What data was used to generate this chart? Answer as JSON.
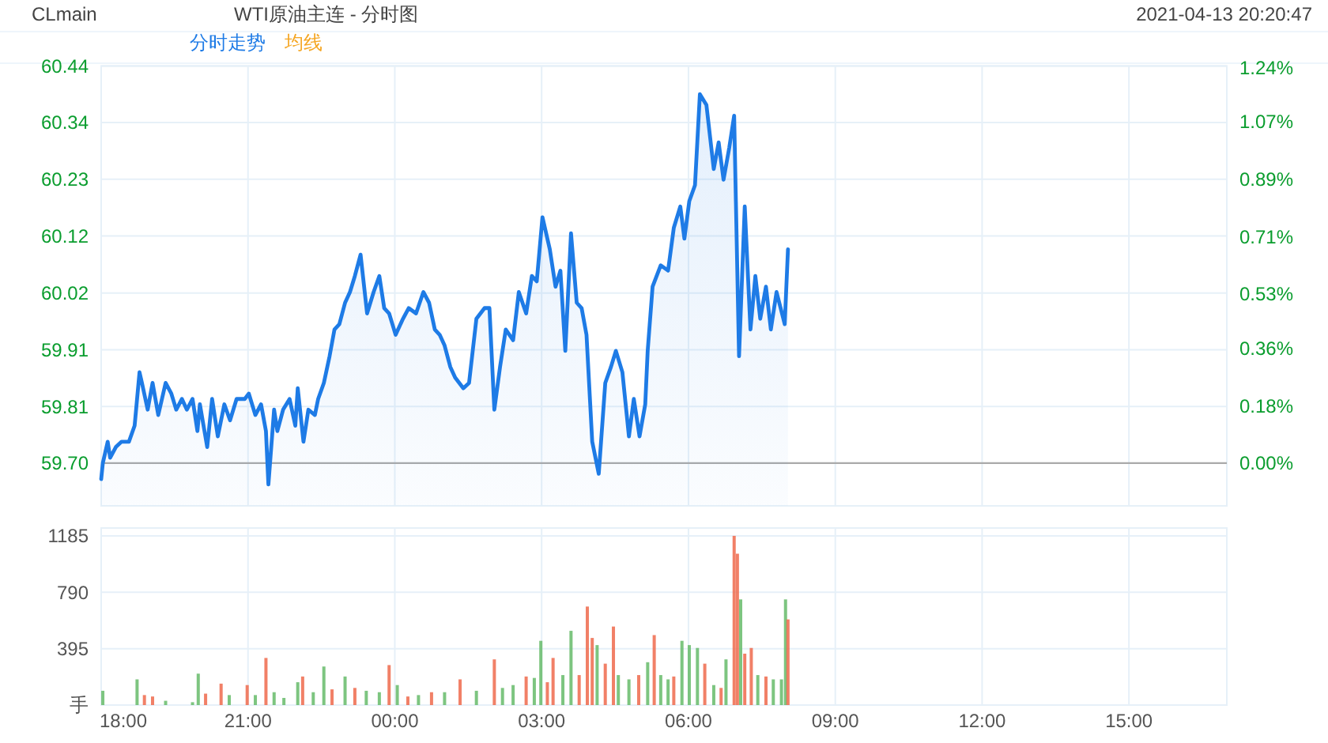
{
  "chart_data": [
    {
      "type": "area",
      "title": "WTI原油主连 - 分时图",
      "annotations": [
        "CLmain",
        "2021-04-13 20:20:47",
        "均线"
      ],
      "legend": "top left",
      "grid": true,
      "tick_labels": "y",
      "xlim": [
        "2021-04-12T18:00",
        "2021-04-13T17:00"
      ],
      "xticks": [
        {
          "value": "2021-04-12T18:00",
          "label": null
        },
        {
          "value": "2021-04-12T21:00",
          "label": null
        },
        {
          "value": "2021-04-13T00:00",
          "label": null
        },
        {
          "value": "2021-04-13T03:00",
          "label": null
        },
        {
          "value": "2021-04-13T06:00",
          "label": null
        },
        {
          "value": "2021-04-13T09:00",
          "label": null
        },
        {
          "value": "2021-04-13T12:00",
          "label": null
        },
        {
          "value": "2021-04-13T15:00",
          "label": null
        }
      ],
      "ylim": [
        59.62,
        60.443
      ],
      "yticks": [
        {
          "value": 59.7,
          "label": "59.70"
        },
        {
          "value": 59.806,
          "label": "59.81"
        },
        {
          "value": 59.912,
          "label": "59.91"
        },
        {
          "value": 60.018,
          "label": "60.02"
        },
        {
          "value": 60.125,
          "label": "60.12"
        },
        {
          "value": 60.231,
          "label": "60.23"
        },
        {
          "value": 60.337,
          "label": "60.34"
        },
        {
          "value": 60.443,
          "label": "60.44"
        }
      ],
      "y2lim": [
        -0.134,
        1.245
      ],
      "y2ticks": [
        {
          "value": 0,
          "label": "0.00%"
        },
        {
          "value": 0.18,
          "label": "0.18%"
        },
        {
          "value": 0.36,
          "label": "0.36%"
        },
        {
          "value": 0.53,
          "label": "0.53%"
        },
        {
          "value": 0.71,
          "label": "0.71%"
        },
        {
          "value": 0.89,
          "label": "0.89%"
        },
        {
          "value": 1.07,
          "label": "1.07%"
        },
        {
          "value": 1.24,
          "label": "1.24%"
        }
      ],
      "ref_lines": [
        {
          "axis": "y",
          "value": 59.7,
          "color": "#aaaaaa"
        }
      ],
      "series": [
        {
          "name": "分时走势",
          "color": "#1e7be6",
          "x": [
            "2021-04-12T18:00",
            "2021-04-12T18:02",
            "2021-04-12T18:08",
            "2021-04-12T18:11",
            "2021-04-12T18:18",
            "2021-04-12T18:25",
            "2021-04-12T18:34",
            "2021-04-12T18:41",
            "2021-04-12T18:47",
            "2021-04-12T18:50",
            "2021-04-12T18:57",
            "2021-04-12T19:03",
            "2021-04-12T19:10",
            "2021-04-12T19:19",
            "2021-04-12T19:26",
            "2021-04-12T19:32",
            "2021-04-12T19:39",
            "2021-04-12T19:45",
            "2021-04-12T19:52",
            "2021-04-12T19:58",
            "2021-04-12T20:01",
            "2021-04-12T20:10",
            "2021-04-12T20:16",
            "2021-04-12T20:23",
            "2021-04-12T20:31",
            "2021-04-12T20:38",
            "2021-04-12T20:46",
            "2021-04-12T20:56",
            "2021-04-12T21:01",
            "2021-04-12T21:09",
            "2021-04-12T21:16",
            "2021-04-12T21:22",
            "2021-04-12T21:25",
            "2021-04-12T21:32",
            "2021-04-12T21:36",
            "2021-04-12T21:43",
            "2021-04-12T21:51",
            "2021-04-12T21:58",
            "2021-04-12T22:01",
            "2021-04-12T22:08",
            "2021-04-12T22:14",
            "2021-04-12T22:22",
            "2021-04-12T22:26",
            "2021-04-12T22:33",
            "2021-04-12T22:40",
            "2021-04-12T22:46",
            "2021-04-12T22:52",
            "2021-04-12T22:59",
            "2021-04-12T23:05",
            "2021-04-12T23:11",
            "2021-04-12T23:18",
            "2021-04-12T23:26",
            "2021-04-12T23:34",
            "2021-04-12T23:41",
            "2021-04-12T23:47",
            "2021-04-12T23:53",
            "2021-04-13T00:01",
            "2021-04-13T00:10",
            "2021-04-13T00:17",
            "2021-04-13T00:26",
            "2021-04-13T00:35",
            "2021-04-13T00:42",
            "2021-04-13T00:49",
            "2021-04-13T00:55",
            "2021-04-13T01:01",
            "2021-04-13T01:08",
            "2021-04-13T01:14",
            "2021-04-13T01:24",
            "2021-04-13T01:31",
            "2021-04-13T01:40",
            "2021-04-13T01:50",
            "2021-04-13T01:56",
            "2021-04-13T02:02",
            "2021-04-13T02:09",
            "2021-04-13T02:16",
            "2021-04-13T02:25",
            "2021-04-13T02:32",
            "2021-04-13T02:41",
            "2021-04-13T02:48",
            "2021-04-13T02:54",
            "2021-04-13T03:01",
            "2021-04-13T03:10",
            "2021-04-13T03:17",
            "2021-04-13T03:23",
            "2021-04-13T03:29",
            "2021-04-13T03:36",
            "2021-04-13T03:43",
            "2021-04-13T03:49",
            "2021-04-13T03:55",
            "2021-04-13T04:02",
            "2021-04-13T04:10",
            "2021-04-13T04:18",
            "2021-04-13T04:25",
            "2021-04-13T04:31",
            "2021-04-13T04:39",
            "2021-04-13T04:47",
            "2021-04-13T04:53",
            "2021-04-13T05:00",
            "2021-04-13T05:07",
            "2021-04-13T05:10",
            "2021-04-13T05:16",
            "2021-04-13T05:26",
            "2021-04-13T05:35",
            "2021-04-13T05:42",
            "2021-04-13T05:50",
            "2021-04-13T05:55",
            "2021-04-13T06:01",
            "2021-04-13T06:08",
            "2021-04-13T06:14",
            "2021-04-13T06:22",
            "2021-04-13T06:31",
            "2021-04-13T06:37",
            "2021-04-13T06:43",
            "2021-04-13T06:50",
            "2021-04-13T06:56",
            "2021-04-13T07:02",
            "2021-04-13T07:09",
            "2021-04-13T07:16",
            "2021-04-13T07:22",
            "2021-04-13T07:28",
            "2021-04-13T07:35",
            "2021-04-13T07:41",
            "2021-04-13T07:48",
            "2021-04-13T07:58",
            "2021-04-13T08:02"
          ],
          "values": [
            59.67,
            59.7,
            59.74,
            59.71,
            59.73,
            59.74,
            59.74,
            59.77,
            59.87,
            59.85,
            59.8,
            59.85,
            59.79,
            59.85,
            59.83,
            59.8,
            59.82,
            59.8,
            59.82,
            59.76,
            59.81,
            59.73,
            59.82,
            59.75,
            59.81,
            59.78,
            59.82,
            59.82,
            59.83,
            59.79,
            59.81,
            59.76,
            59.66,
            59.8,
            59.76,
            59.8,
            59.82,
            59.77,
            59.84,
            59.74,
            59.8,
            59.79,
            59.82,
            59.85,
            59.9,
            59.95,
            59.96,
            60.0,
            60.02,
            60.05,
            60.09,
            59.98,
            60.02,
            60.05,
            59.99,
            59.98,
            59.94,
            59.97,
            59.99,
            59.98,
            60.02,
            60.0,
            59.95,
            59.94,
            59.92,
            59.88,
            59.86,
            59.84,
            59.85,
            59.97,
            59.99,
            59.99,
            59.8,
            59.88,
            59.95,
            59.93,
            60.02,
            59.98,
            60.05,
            60.04,
            60.16,
            60.1,
            60.03,
            60.06,
            59.91,
            60.13,
            60.0,
            59.99,
            59.94,
            59.74,
            59.68,
            59.85,
            59.88,
            59.91,
            59.87,
            59.75,
            59.82,
            59.75,
            59.81,
            59.91,
            60.03,
            60.07,
            60.06,
            60.14,
            60.18,
            60.12,
            60.19,
            60.22,
            60.39,
            60.37,
            60.25,
            60.3,
            60.23,
            60.29,
            60.35,
            59.9,
            60.18,
            59.95,
            60.05,
            59.97,
            60.03,
            59.95,
            60.02,
            59.96,
            60.1
          ]
        }
      ]
    },
    {
      "type": "bar",
      "grid": true,
      "xlim": [
        "2021-04-12T18:00",
        "2021-04-13T17:00"
      ],
      "xticks": [
        {
          "value": "2021-04-12T18:00",
          "label": "18:00"
        },
        {
          "value": "2021-04-12T21:00",
          "label": "21:00"
        },
        {
          "value": "2021-04-13T00:00",
          "label": "00:00"
        },
        {
          "value": "2021-04-13T03:00",
          "label": "03:00"
        },
        {
          "value": "2021-04-13T06:00",
          "label": "06:00"
        },
        {
          "value": "2021-04-13T09:00",
          "label": "09:00"
        },
        {
          "value": "2021-04-13T12:00",
          "label": "12:00"
        },
        {
          "value": "2021-04-13T15:00",
          "label": "15:00"
        }
      ],
      "ylim": [
        0,
        1240
      ],
      "yticks": [
        {
          "value": 0,
          "label": "手"
        },
        395,
        790,
        1185
      ],
      "x": [
        "2021-04-12T18:02",
        "2021-04-12T18:44",
        "2021-04-12T18:53",
        "2021-04-12T19:03",
        "2021-04-12T19:19",
        "2021-04-12T19:52",
        "2021-04-12T19:59",
        "2021-04-12T20:08",
        "2021-04-12T20:27",
        "2021-04-12T20:37",
        "2021-04-12T20:59",
        "2021-04-12T21:09",
        "2021-04-12T21:22",
        "2021-04-12T21:32",
        "2021-04-12T21:44",
        "2021-04-12T22:01",
        "2021-04-12T22:07",
        "2021-04-12T22:20",
        "2021-04-12T22:33",
        "2021-04-12T22:43",
        "2021-04-12T22:59",
        "2021-04-12T23:11",
        "2021-04-12T23:25",
        "2021-04-12T23:41",
        "2021-04-12T23:53",
        "2021-04-13T00:03",
        "2021-04-13T00:16",
        "2021-04-13T00:29",
        "2021-04-13T00:45",
        "2021-04-13T01:01",
        "2021-04-13T01:20",
        "2021-04-13T01:40",
        "2021-04-13T02:02",
        "2021-04-13T02:12",
        "2021-04-13T02:25",
        "2021-04-13T02:41",
        "2021-04-13T02:51",
        "2021-04-13T02:59",
        "2021-04-13T03:07",
        "2021-04-13T03:14",
        "2021-04-13T03:26",
        "2021-04-13T03:36",
        "2021-04-13T03:46",
        "2021-04-13T03:56",
        "2021-04-13T04:02",
        "2021-04-13T04:08",
        "2021-04-13T04:18",
        "2021-04-13T04:28",
        "2021-04-13T04:34",
        "2021-04-13T04:47",
        "2021-04-13T04:59",
        "2021-04-13T05:10",
        "2021-04-13T05:18",
        "2021-04-13T05:26",
        "2021-04-13T05:35",
        "2021-04-13T05:42",
        "2021-04-13T05:52",
        "2021-04-13T06:01",
        "2021-04-13T06:11",
        "2021-04-13T06:20",
        "2021-04-13T06:31",
        "2021-04-13T06:40",
        "2021-04-13T06:46",
        "2021-04-13T06:56",
        "2021-04-13T07:00",
        "2021-04-13T07:04",
        "2021-04-13T07:09",
        "2021-04-13T07:17",
        "2021-04-13T07:25",
        "2021-04-13T07:35",
        "2021-04-13T07:44",
        "2021-04-13T07:54",
        "2021-04-13T07:59",
        "2021-04-13T08:02"
      ],
      "values": [
        100,
        180,
        70,
        60,
        30,
        20,
        220,
        80,
        150,
        70,
        140,
        70,
        330,
        90,
        50,
        160,
        200,
        90,
        270,
        110,
        200,
        120,
        100,
        90,
        280,
        140,
        60,
        70,
        90,
        90,
        180,
        100,
        320,
        120,
        140,
        200,
        190,
        450,
        160,
        330,
        210,
        520,
        210,
        690,
        470,
        420,
        290,
        550,
        210,
        180,
        210,
        300,
        490,
        210,
        180,
        200,
        450,
        420,
        400,
        290,
        140,
        120,
        320,
        1185,
        1060,
        740,
        360,
        400,
        210,
        200,
        180,
        180,
        740,
        600
      ],
      "colors": [
        "#66bb6a",
        "#66bb6a",
        "#ef6a4c",
        "#ef6a4c",
        "#66bb6a",
        "#66bb6a",
        "#66bb6a",
        "#ef6a4c",
        "#ef6a4c",
        "#66bb6a",
        "#ef6a4c",
        "#66bb6a",
        "#ef6a4c",
        "#66bb6a",
        "#66bb6a",
        "#66bb6a",
        "#ef6a4c",
        "#66bb6a",
        "#66bb6a",
        "#ef6a4c",
        "#66bb6a",
        "#ef6a4c",
        "#66bb6a",
        "#66bb6a",
        "#ef6a4c",
        "#66bb6a",
        "#ef6a4c",
        "#66bb6a",
        "#ef6a4c",
        "#66bb6a",
        "#ef6a4c",
        "#66bb6a",
        "#ef6a4c",
        "#66bb6a",
        "#66bb6a",
        "#ef6a4c",
        "#66bb6a",
        "#66bb6a",
        "#ef6a4c",
        "#ef6a4c",
        "#66bb6a",
        "#66bb6a",
        "#ef6a4c",
        "#ef6a4c",
        "#ef6a4c",
        "#66bb6a",
        "#ef6a4c",
        "#ef6a4c",
        "#66bb6a",
        "#66bb6a",
        "#ef6a4c",
        "#66bb6a",
        "#ef6a4c",
        "#66bb6a",
        "#66bb6a",
        "#ef6a4c",
        "#66bb6a",
        "#66bb6a",
        "#66bb6a",
        "#ef6a4c",
        "#66bb6a",
        "#ef6a4c",
        "#66bb6a",
        "#ef6a4c",
        "#ef6a4c",
        "#66bb6a",
        "#ef6a4c",
        "#ef6a4c",
        "#66bb6a",
        "#ef6a4c",
        "#66bb6a",
        "#66bb6a",
        "#66bb6a",
        "#ef6a4c"
      ]
    }
  ]
}
